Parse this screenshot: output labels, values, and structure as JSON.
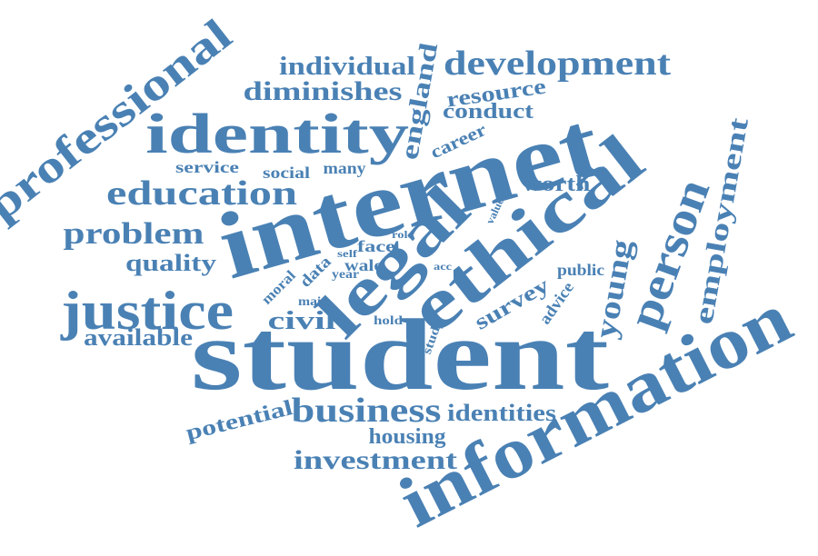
{
  "color": "#4a81b4",
  "words": [
    {
      "text": "student"
    },
    {
      "text": "internet"
    },
    {
      "text": "information"
    },
    {
      "text": "ethical"
    },
    {
      "text": "legal"
    },
    {
      "text": "identity"
    },
    {
      "text": "justice"
    },
    {
      "text": "professional"
    },
    {
      "text": "person"
    },
    {
      "text": "development"
    },
    {
      "text": "education"
    },
    {
      "text": "business"
    },
    {
      "text": "problem"
    },
    {
      "text": "investment"
    },
    {
      "text": "diminishes"
    },
    {
      "text": "individual"
    },
    {
      "text": "employment"
    },
    {
      "text": "young"
    },
    {
      "text": "england"
    },
    {
      "text": "civil"
    },
    {
      "text": "quality"
    },
    {
      "text": "available"
    },
    {
      "text": "potential"
    },
    {
      "text": "identities"
    },
    {
      "text": "housing"
    },
    {
      "text": "survey"
    },
    {
      "text": "worth"
    },
    {
      "text": "resource"
    },
    {
      "text": "conduct"
    },
    {
      "text": "career"
    },
    {
      "text": "service"
    },
    {
      "text": "social"
    },
    {
      "text": "many"
    },
    {
      "text": "face"
    },
    {
      "text": "wale"
    },
    {
      "text": "public"
    },
    {
      "text": "advice"
    },
    {
      "text": "data"
    },
    {
      "text": "moral"
    },
    {
      "text": "hold"
    },
    {
      "text": "study"
    },
    {
      "text": "main"
    },
    {
      "text": "year"
    },
    {
      "text": "self"
    },
    {
      "text": "role"
    },
    {
      "text": "acc"
    },
    {
      "text": "value"
    }
  ]
}
